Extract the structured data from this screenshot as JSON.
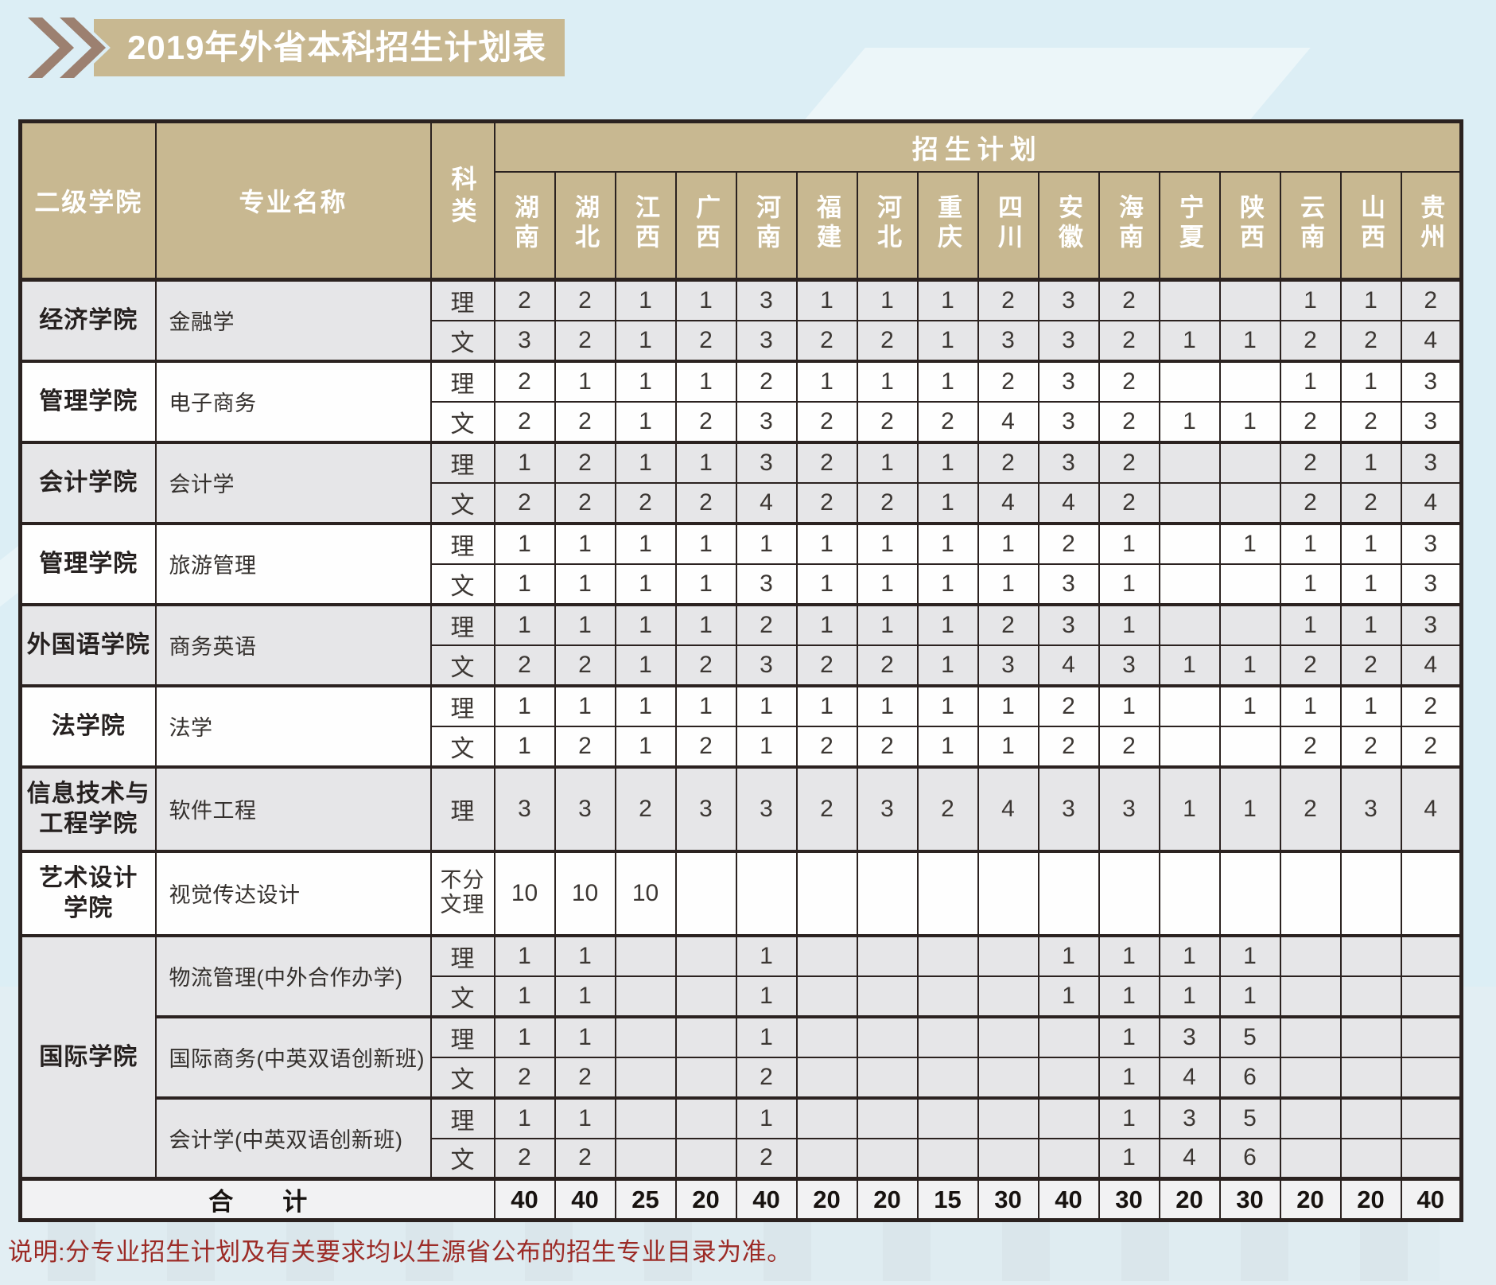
{
  "page": {
    "title": "2019年外省本科招生计划表",
    "note": "说明:分专业招生计划及有关要求均以生源省公布的招生专业目录为准。"
  },
  "colors": {
    "background": "#dceef5",
    "banner_tan": "#c8b891",
    "chevron_brown": "#9c8070",
    "table_border": "#2b2220",
    "row_gray": "#e6e6e8",
    "row_white": "#fefefe",
    "note_red": "#9c2b26",
    "header_text": "#ffffff"
  },
  "table": {
    "headers": {
      "college": "二级学院",
      "major": "专业名称",
      "subject": "科类",
      "plan": "招生计划"
    },
    "provinces": [
      "湖南",
      "湖北",
      "江西",
      "广西",
      "河南",
      "福建",
      "河北",
      "重庆",
      "四川",
      "安徽",
      "海南",
      "宁夏",
      "陕西",
      "云南",
      "山西",
      "贵州"
    ],
    "groups": [
      {
        "college": "经济学院",
        "shade": "gray",
        "majors": [
          {
            "name": "金融学",
            "rows": [
              {
                "subject": "理",
                "values": [
                  "2",
                  "2",
                  "1",
                  "1",
                  "3",
                  "1",
                  "1",
                  "1",
                  "2",
                  "3",
                  "2",
                  "",
                  "",
                  "1",
                  "1",
                  "2"
                ]
              },
              {
                "subject": "文",
                "values": [
                  "3",
                  "2",
                  "1",
                  "2",
                  "3",
                  "2",
                  "2",
                  "1",
                  "3",
                  "3",
                  "2",
                  "1",
                  "1",
                  "2",
                  "2",
                  "4"
                ]
              }
            ]
          }
        ]
      },
      {
        "college": "管理学院",
        "shade": "white",
        "majors": [
          {
            "name": "电子商务",
            "rows": [
              {
                "subject": "理",
                "values": [
                  "2",
                  "1",
                  "1",
                  "1",
                  "2",
                  "1",
                  "1",
                  "1",
                  "2",
                  "3",
                  "2",
                  "",
                  "",
                  "1",
                  "1",
                  "3"
                ]
              },
              {
                "subject": "文",
                "values": [
                  "2",
                  "2",
                  "1",
                  "2",
                  "3",
                  "2",
                  "2",
                  "2",
                  "4",
                  "3",
                  "2",
                  "1",
                  "1",
                  "2",
                  "2",
                  "3"
                ]
              }
            ]
          }
        ]
      },
      {
        "college": "会计学院",
        "shade": "gray",
        "majors": [
          {
            "name": "会计学",
            "rows": [
              {
                "subject": "理",
                "values": [
                  "1",
                  "2",
                  "1",
                  "1",
                  "3",
                  "2",
                  "1",
                  "1",
                  "2",
                  "3",
                  "2",
                  "",
                  "",
                  "2",
                  "1",
                  "3"
                ]
              },
              {
                "subject": "文",
                "values": [
                  "2",
                  "2",
                  "2",
                  "2",
                  "4",
                  "2",
                  "2",
                  "1",
                  "4",
                  "4",
                  "2",
                  "",
                  "",
                  "2",
                  "2",
                  "4"
                ]
              }
            ]
          }
        ]
      },
      {
        "college": "管理学院",
        "shade": "white",
        "majors": [
          {
            "name": "旅游管理",
            "rows": [
              {
                "subject": "理",
                "values": [
                  "1",
                  "1",
                  "1",
                  "1",
                  "1",
                  "1",
                  "1",
                  "1",
                  "1",
                  "2",
                  "1",
                  "",
                  "1",
                  "1",
                  "1",
                  "3"
                ]
              },
              {
                "subject": "文",
                "values": [
                  "1",
                  "1",
                  "1",
                  "1",
                  "3",
                  "1",
                  "1",
                  "1",
                  "1",
                  "3",
                  "1",
                  "",
                  "",
                  "1",
                  "1",
                  "3"
                ]
              }
            ]
          }
        ]
      },
      {
        "college": "外国语学院",
        "shade": "gray",
        "majors": [
          {
            "name": "商务英语",
            "rows": [
              {
                "subject": "理",
                "values": [
                  "1",
                  "1",
                  "1",
                  "1",
                  "2",
                  "1",
                  "1",
                  "1",
                  "2",
                  "3",
                  "1",
                  "",
                  "",
                  "1",
                  "1",
                  "3"
                ]
              },
              {
                "subject": "文",
                "values": [
                  "2",
                  "2",
                  "1",
                  "2",
                  "3",
                  "2",
                  "2",
                  "1",
                  "3",
                  "4",
                  "3",
                  "1",
                  "1",
                  "2",
                  "2",
                  "4"
                ]
              }
            ]
          }
        ]
      },
      {
        "college": "法学院",
        "shade": "white",
        "majors": [
          {
            "name": "法学",
            "rows": [
              {
                "subject": "理",
                "values": [
                  "1",
                  "1",
                  "1",
                  "1",
                  "1",
                  "1",
                  "1",
                  "1",
                  "1",
                  "2",
                  "1",
                  "",
                  "1",
                  "1",
                  "1",
                  "2"
                ]
              },
              {
                "subject": "文",
                "values": [
                  "1",
                  "2",
                  "1",
                  "2",
                  "1",
                  "2",
                  "2",
                  "1",
                  "1",
                  "2",
                  "2",
                  "",
                  "",
                  "2",
                  "2",
                  "2"
                ]
              }
            ]
          }
        ]
      },
      {
        "college": "信息技术与\n工程学院",
        "shade": "gray",
        "majors": [
          {
            "name": "软件工程",
            "rows": [
              {
                "subject": "理",
                "tall": true,
                "values": [
                  "3",
                  "3",
                  "2",
                  "3",
                  "3",
                  "2",
                  "3",
                  "2",
                  "4",
                  "3",
                  "3",
                  "1",
                  "1",
                  "2",
                  "3",
                  "4"
                ]
              }
            ]
          }
        ]
      },
      {
        "college": "艺术设计\n学院",
        "shade": "white",
        "majors": [
          {
            "name": "视觉传达设计",
            "rows": [
              {
                "subject": "不分文理",
                "tall": true,
                "wrap": true,
                "values": [
                  "10",
                  "10",
                  "10",
                  "",
                  "",
                  "",
                  "",
                  "",
                  "",
                  "",
                  "",
                  "",
                  "",
                  "",
                  "",
                  ""
                ]
              }
            ]
          }
        ]
      },
      {
        "college": "国际学院",
        "shade": "gray",
        "majors": [
          {
            "name": "物流管理(中外合作办学)",
            "rows": [
              {
                "subject": "理",
                "values": [
                  "1",
                  "1",
                  "",
                  "",
                  "1",
                  "",
                  "",
                  "",
                  "",
                  "1",
                  "1",
                  "1",
                  "1",
                  "",
                  "",
                  ""
                ]
              },
              {
                "subject": "文",
                "values": [
                  "1",
                  "1",
                  "",
                  "",
                  "1",
                  "",
                  "",
                  "",
                  "",
                  "1",
                  "1",
                  "1",
                  "1",
                  "",
                  "",
                  ""
                ]
              }
            ]
          },
          {
            "name": "国际商务(中英双语创新班)",
            "rows": [
              {
                "subject": "理",
                "values": [
                  "1",
                  "1",
                  "",
                  "",
                  "1",
                  "",
                  "",
                  "",
                  "",
                  "",
                  "1",
                  "3",
                  "5",
                  "",
                  "",
                  ""
                ]
              },
              {
                "subject": "文",
                "values": [
                  "2",
                  "2",
                  "",
                  "",
                  "2",
                  "",
                  "",
                  "",
                  "",
                  "",
                  "1",
                  "4",
                  "6",
                  "",
                  "",
                  ""
                ]
              }
            ]
          },
          {
            "name": "会计学(中英双语创新班)",
            "rows": [
              {
                "subject": "理",
                "values": [
                  "1",
                  "1",
                  "",
                  "",
                  "1",
                  "",
                  "",
                  "",
                  "",
                  "",
                  "1",
                  "3",
                  "5",
                  "",
                  "",
                  ""
                ]
              },
              {
                "subject": "文",
                "values": [
                  "2",
                  "2",
                  "",
                  "",
                  "2",
                  "",
                  "",
                  "",
                  "",
                  "",
                  "1",
                  "4",
                  "6",
                  "",
                  "",
                  ""
                ]
              }
            ]
          }
        ]
      }
    ],
    "total": {
      "label": "合　　计",
      "values": [
        "40",
        "40",
        "25",
        "20",
        "40",
        "20",
        "20",
        "15",
        "30",
        "40",
        "30",
        "20",
        "30",
        "20",
        "20",
        "40"
      ]
    }
  }
}
